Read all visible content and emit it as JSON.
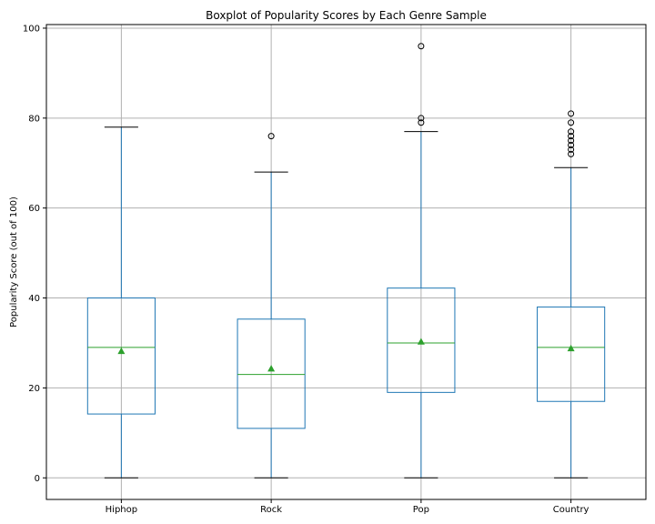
{
  "chart_data": {
    "type": "boxplot",
    "title": "Boxplot of Popularity Scores by Each Genre Sample",
    "xlabel": "",
    "ylabel": "Popularity Score (out of 100)",
    "ylim": [
      -4.8,
      100.8
    ],
    "yticks": [
      0,
      20,
      40,
      60,
      80,
      100
    ],
    "grid": true,
    "show_means": true,
    "colors": {
      "box": "#1f77b4",
      "median": "#2ca02c",
      "mean": "#2ca02c",
      "cap": "#000000",
      "grid": "#b0b0b0",
      "flier": "#000000"
    },
    "categories": [
      "Hiphop",
      "Rock",
      "Pop",
      "Country"
    ],
    "boxes": [
      {
        "label": "Hiphop",
        "whisker_low": 0,
        "q1": 14.2,
        "median": 29,
        "q3": 40,
        "whisker_high": 78,
        "mean": 28.2,
        "outliers": []
      },
      {
        "label": "Rock",
        "whisker_low": 0,
        "q1": 11,
        "median": 23,
        "q3": 35.3,
        "whisker_high": 68,
        "mean": 24.3,
        "outliers": [
          76
        ]
      },
      {
        "label": "Pop",
        "whisker_low": 0,
        "q1": 19,
        "median": 30,
        "q3": 42.2,
        "whisker_high": 77,
        "mean": 30.3,
        "outliers": [
          79,
          80,
          96
        ]
      },
      {
        "label": "Country",
        "whisker_low": 0,
        "q1": 17,
        "median": 29,
        "q3": 38,
        "whisker_high": 69,
        "mean": 28.8,
        "outliers": [
          72,
          73,
          74,
          75,
          76,
          77,
          79,
          81
        ]
      }
    ]
  }
}
